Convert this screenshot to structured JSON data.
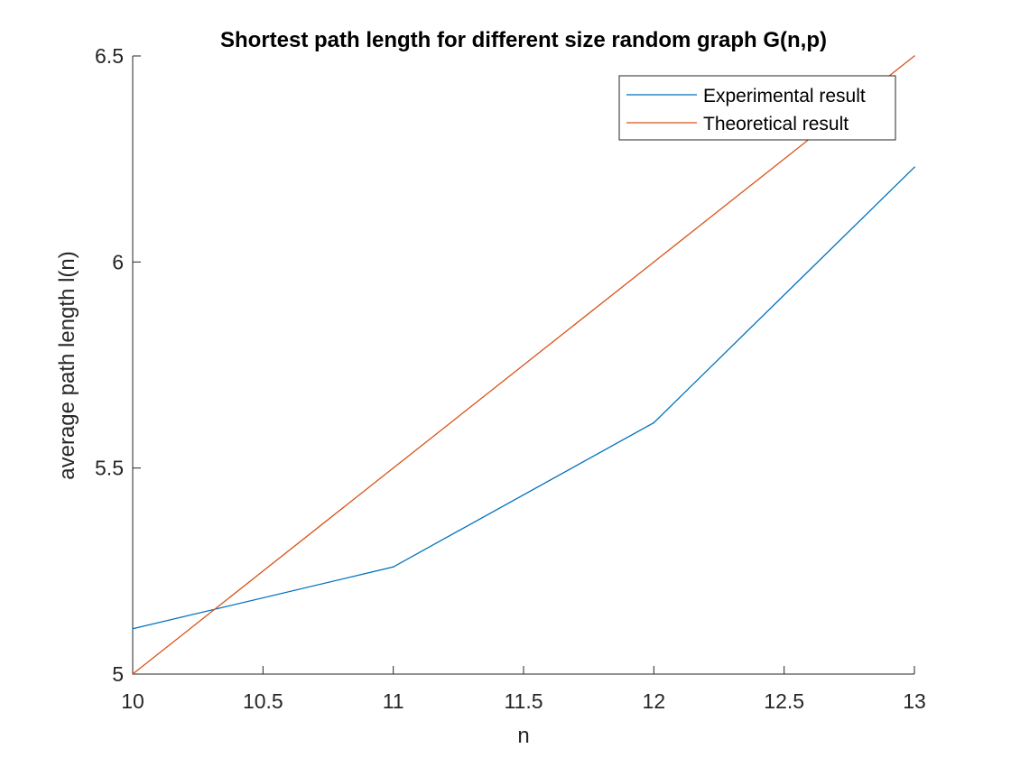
{
  "chart_data": {
    "type": "line",
    "title": "Shortest path length for different size random graph G(n,p)",
    "xlabel": "n",
    "ylabel": "average path length l(n)",
    "xlim": [
      10,
      13
    ],
    "ylim": [
      5,
      6.5
    ],
    "xticks": [
      10,
      10.5,
      11,
      11.5,
      12,
      12.5,
      13
    ],
    "xtick_labels": [
      "10",
      "10.5",
      "11",
      "11.5",
      "12",
      "12.5",
      "13"
    ],
    "yticks": [
      5,
      5.5,
      6,
      6.5
    ],
    "ytick_labels": [
      "5",
      "5.5",
      "6",
      "6.5"
    ],
    "grid": false,
    "legend_position": "top-right",
    "series": [
      {
        "name": "Experimental result",
        "color": "#0072bd",
        "x": [
          10,
          11,
          12,
          13
        ],
        "y": [
          5.11,
          5.26,
          5.61,
          6.23
        ]
      },
      {
        "name": "Theoretical result",
        "color": "#d95319",
        "x": [
          10,
          11,
          12,
          13
        ],
        "y": [
          5.0,
          5.5,
          6.0,
          6.5
        ]
      }
    ]
  }
}
